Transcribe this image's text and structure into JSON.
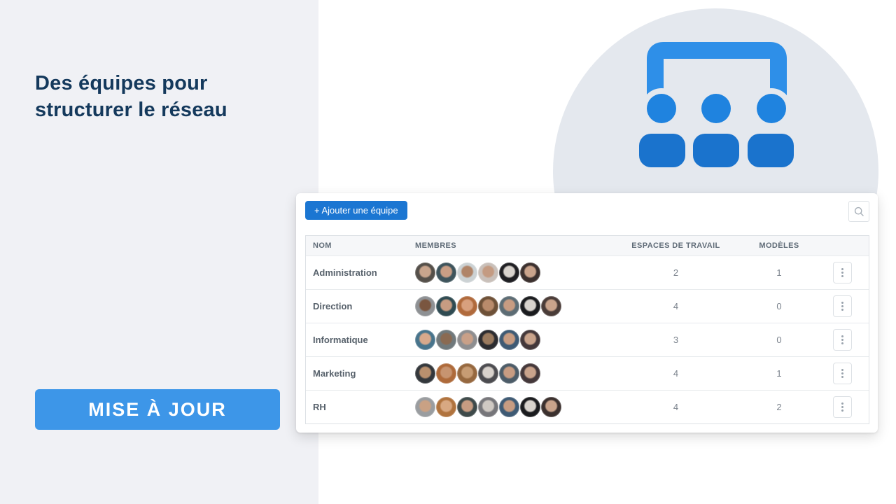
{
  "left_panel": {
    "title": "Des équipes pour structurer le réseau",
    "update_button": "MISE À JOUR"
  },
  "hero": {
    "icon": "team-icon"
  },
  "card": {
    "add_button": "+ Ajouter une équipe",
    "search_icon": "search-icon",
    "columns": [
      "NOM",
      "MEMBRES",
      "ESPACES DE TRAVAIL",
      "MODÈLES"
    ],
    "teams": [
      {
        "name": "Administration",
        "workspaces": "2",
        "models": "1",
        "avatars": [
          {
            "skin": "#c9a58d",
            "bg": "#55504a"
          },
          {
            "skin": "#c99e85",
            "bg": "#3e545c"
          },
          {
            "skin": "#b08468",
            "bg": "#ccd2d4"
          },
          {
            "skin": "#c49b82",
            "bg": "#c9c0ba"
          },
          {
            "skin": "#d8d3cd",
            "bg": "#1e1e22"
          },
          {
            "skin": "#c9a38b",
            "bg": "#3b302e"
          }
        ]
      },
      {
        "name": "Direction",
        "workspaces": "4",
        "models": "0",
        "avatars": [
          {
            "skin": "#7a5640",
            "bg": "#8e9194"
          },
          {
            "skin": "#c79c82",
            "bg": "#2f4b52"
          },
          {
            "skin": "#d8a07e",
            "bg": "#b06a3c"
          },
          {
            "skin": "#b98b6b",
            "bg": "#6e5138"
          },
          {
            "skin": "#c79c82",
            "bg": "#5c6c74"
          },
          {
            "skin": "#d8d3cd",
            "bg": "#1a1b1e"
          },
          {
            "skin": "#c9a38b",
            "bg": "#4a3c38"
          }
        ]
      },
      {
        "name": "Informatique",
        "workspaces": "3",
        "models": "0",
        "avatars": [
          {
            "skin": "#d8a98c",
            "bg": "#48748c"
          },
          {
            "skin": "#8a6a52",
            "bg": "#70797c"
          },
          {
            "skin": "#c9a088",
            "bg": "#8e8e90"
          },
          {
            "skin": "#9a7a5e",
            "bg": "#2c2c30"
          },
          {
            "skin": "#c79c82",
            "bg": "#3e5a74"
          },
          {
            "skin": "#c9a38b",
            "bg": "#44383a"
          }
        ]
      },
      {
        "name": "Marketing",
        "workspaces": "4",
        "models": "1",
        "avatars": [
          {
            "skin": "#b9906e",
            "bg": "#34383c"
          },
          {
            "skin": "#c79470",
            "bg": "#ae6a3a"
          },
          {
            "skin": "#c79c74",
            "bg": "#96683f"
          },
          {
            "skin": "#d8d2cc",
            "bg": "#4c4c50"
          },
          {
            "skin": "#c79c82",
            "bg": "#4c5c68"
          },
          {
            "skin": "#c9a38b",
            "bg": "#44383a"
          }
        ]
      },
      {
        "name": "RH",
        "workspaces": "4",
        "models": "2",
        "avatars": [
          {
            "skin": "#c9a184",
            "bg": "#9a9da0"
          },
          {
            "skin": "#d8a882",
            "bg": "#b0733e"
          },
          {
            "skin": "#c79c82",
            "bg": "#3e4a4a"
          },
          {
            "skin": "#cfc9c3",
            "bg": "#76767a"
          },
          {
            "skin": "#c79c82",
            "bg": "#3e5a74"
          },
          {
            "skin": "#d8d3cd",
            "bg": "#1a1b1e"
          },
          {
            "skin": "#c9a38b",
            "bg": "#3b302e"
          }
        ]
      }
    ]
  },
  "colors": {
    "navy": "#14395c",
    "panel_bg": "#f0f1f5",
    "accent": "#3d96e8",
    "accent_dark": "#1b76d2",
    "circle_bg": "#e4e8ee",
    "icon_bracket": "#2e8fe8",
    "icon_head": "#1f83df",
    "icon_body": "#1a73cd",
    "border": "#dde1e5",
    "row_border": "#e7eaed",
    "header_bg": "#f6f7f9",
    "header_text": "#5f6b77",
    "text": "#57616b",
    "muted": "#7a828c"
  }
}
